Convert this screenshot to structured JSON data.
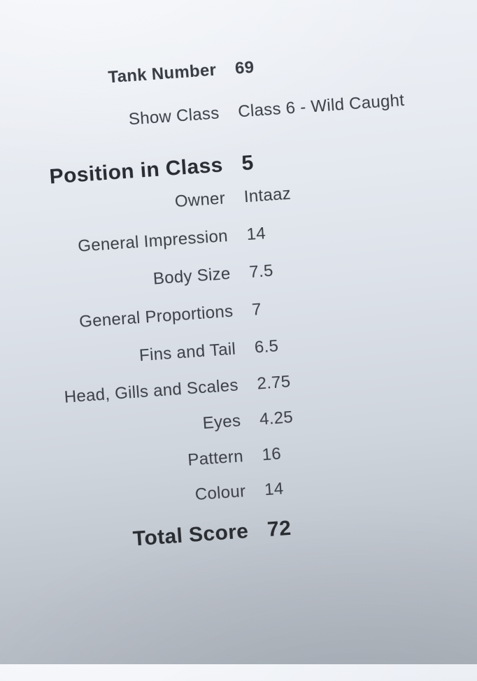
{
  "sheet": {
    "description": "Photographed printed fish-show judging score sheet",
    "rows": [
      {
        "label": "Tank Number",
        "value": "69"
      },
      {
        "label": "Show Class",
        "value": "Class 6 - Wild Caught"
      },
      {
        "label": "Position in Class",
        "value": "5"
      },
      {
        "label": "Owner",
        "value": "Intaaz"
      },
      {
        "label": "General Impression",
        "value": "14"
      },
      {
        "label": "Body Size",
        "value": "7.5"
      },
      {
        "label": "General Proportions",
        "value": "7"
      },
      {
        "label": "Fins and Tail",
        "value": "6.5"
      },
      {
        "label": "Head, Gills and Scales",
        "value": "2.75"
      },
      {
        "label": "Eyes",
        "value": "4.25"
      },
      {
        "label": "Pattern",
        "value": "16"
      },
      {
        "label": "Colour",
        "value": "14"
      },
      {
        "label": "Total Score",
        "value": "72"
      }
    ]
  },
  "colors": {
    "ink_regular": "#3b3f46",
    "ink_bold": "#292c31",
    "paper_highlight": "#eef1f6",
    "paper_shadow": "#b2b8c0"
  }
}
